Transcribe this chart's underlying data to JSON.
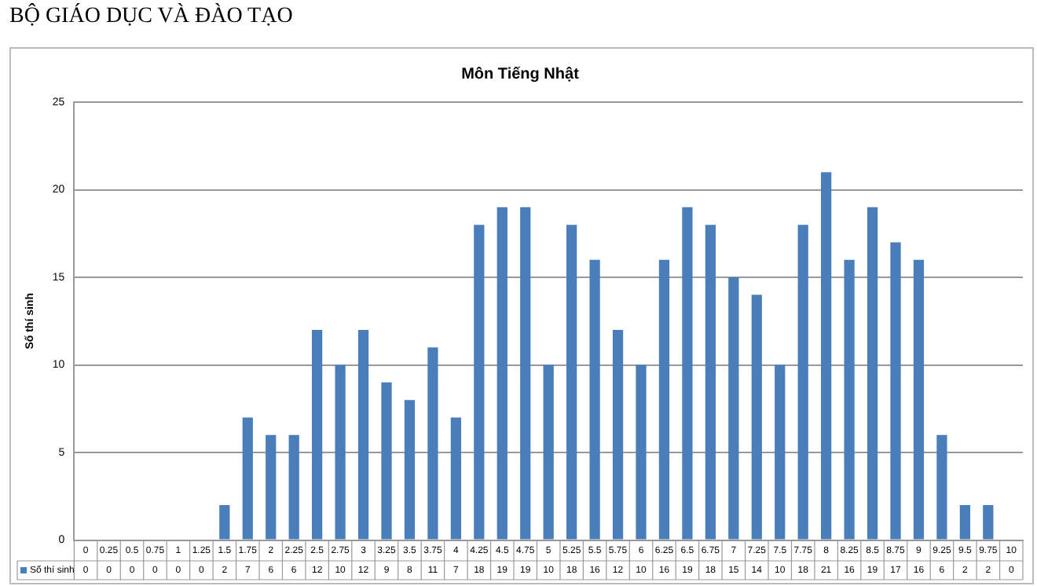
{
  "chart_data": {
    "type": "bar",
    "title": "Môn Tiếng Nhật",
    "ylabel": "Số thí sinh",
    "annotations": [
      "BỘ GIÁO DỤC VÀ ĐÀO TẠO"
    ],
    "categories": [
      "0",
      "0.25",
      "0.5",
      "0.75",
      "1",
      "1.25",
      "1.5",
      "1.75",
      "2",
      "2.25",
      "2.5",
      "2.75",
      "3",
      "3.25",
      "3.5",
      "3.75",
      "4",
      "4.25",
      "4.5",
      "4.75",
      "5",
      "5.25",
      "5.5",
      "5.75",
      "6",
      "6.25",
      "6.5",
      "6.75",
      "7",
      "7.25",
      "7.5",
      "7.75",
      "8",
      "8.25",
      "8.5",
      "8.75",
      "9",
      "9.25",
      "9.5",
      "9.75",
      "10"
    ],
    "series": [
      {
        "name": "Số thí sinh",
        "color": "#4a7ebb",
        "values": [
          0,
          0,
          0,
          0,
          0,
          0,
          2,
          7,
          6,
          6,
          12,
          10,
          12,
          9,
          8,
          11,
          7,
          18,
          19,
          19,
          10,
          18,
          16,
          12,
          10,
          16,
          19,
          18,
          15,
          14,
          10,
          18,
          21,
          16,
          19,
          17,
          16,
          6,
          2,
          2,
          0
        ]
      }
    ],
    "ylim": [
      0,
      25
    ],
    "yticks": [
      0,
      5,
      10,
      15,
      20,
      25
    ],
    "grid": "y",
    "data_labels": true,
    "legend": "bottom"
  }
}
